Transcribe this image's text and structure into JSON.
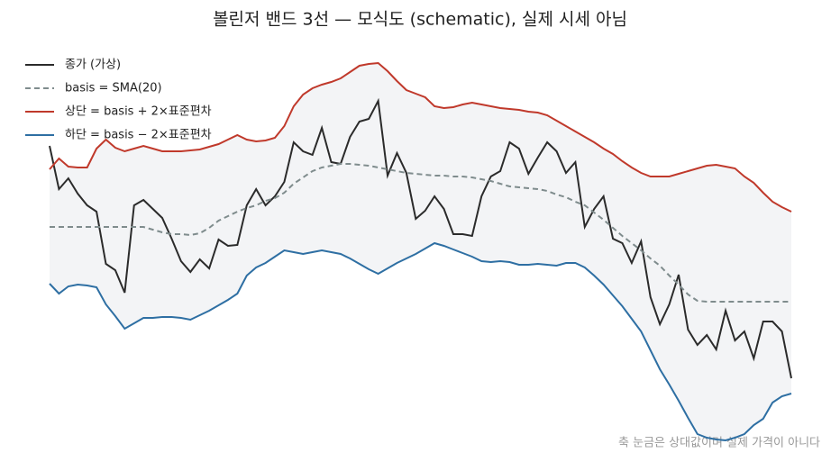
{
  "chart_data": {
    "type": "line",
    "title": "볼린저 밴드 3선 — 모식도 (schematic), 실제 시세 아님",
    "annotation": "축 눈금은 상대값이며 실제 가격이 아니다",
    "ylim": [
      0,
      450
    ],
    "legend": "upper left",
    "band_fill": "#f3f4f6",
    "series": [
      {
        "name": "종가 (가상)",
        "color": "#2b2b2b",
        "dash": "solid",
        "values": [
          338,
          290,
          302,
          285,
          272,
          265,
          207,
          200,
          175,
          272,
          278,
          268,
          258,
          235,
          210,
          198,
          212,
          202,
          234,
          227,
          228,
          272,
          290,
          272,
          282,
          298,
          342,
          332,
          328,
          358,
          320,
          318,
          348,
          365,
          368,
          388,
          305,
          330,
          308,
          257,
          266,
          282,
          268,
          240,
          240,
          238,
          282,
          304,
          310,
          342,
          335,
          307,
          325,
          342,
          332,
          308,
          320,
          248,
          268,
          282,
          235,
          230,
          208,
          232,
          170,
          140,
          162,
          195,
          134,
          117,
          128,
          112,
          155,
          122,
          132,
          102,
          143,
          143,
          132,
          80
        ]
      },
      {
        "name": "basis = SMA(20)",
        "color": "#7f8c8d",
        "dash": "dashed",
        "values": [
          248,
          248,
          248,
          248,
          248,
          248,
          248,
          248,
          248,
          248,
          248,
          245,
          242,
          240,
          240,
          239,
          241,
          247,
          255,
          260,
          265,
          269,
          272,
          277,
          280,
          286,
          296,
          303,
          310,
          314,
          316,
          318,
          318,
          317,
          316,
          314,
          312,
          310,
          308,
          307,
          306,
          305,
          305,
          304,
          304,
          303,
          301,
          299,
          296,
          293,
          292,
          291,
          290,
          288,
          284,
          281,
          276,
          272,
          264,
          256,
          247,
          238,
          230,
          222,
          213,
          205,
          194,
          184,
          173,
          166,
          165,
          165,
          165,
          165,
          165,
          165,
          165,
          165,
          165,
          165
        ]
      },
      {
        "name": "상단 = basis + 2×표준편차",
        "color": "#c0392b",
        "dash": "solid",
        "band": "upper",
        "values": [
          312,
          324,
          315,
          314,
          314,
          335,
          345,
          336,
          332,
          335,
          338,
          335,
          332,
          332,
          332,
          333,
          334,
          337,
          340,
          345,
          350,
          345,
          343,
          344,
          347,
          360,
          382,
          395,
          402,
          406,
          409,
          413,
          420,
          427,
          429,
          430,
          421,
          410,
          400,
          396,
          392,
          382,
          380,
          381,
          384,
          386,
          384,
          382,
          380,
          379,
          378,
          376,
          375,
          372,
          366,
          360,
          354,
          348,
          342,
          335,
          329,
          321,
          314,
          308,
          304,
          304,
          304,
          307,
          310,
          313,
          316,
          317,
          315,
          313,
          304,
          297,
          286,
          276,
          270,
          265
        ]
      },
      {
        "name": "하단 = basis − 2×표준편차",
        "color": "#2e6fa3",
        "dash": "solid",
        "band": "lower",
        "values": [
          185,
          174,
          182,
          184,
          183,
          181,
          162,
          149,
          135,
          141,
          147,
          147,
          148,
          148,
          147,
          145,
          150,
          155,
          161,
          167,
          174,
          194,
          203,
          208,
          215,
          222,
          220,
          218,
          220,
          222,
          220,
          218,
          213,
          207,
          201,
          196,
          202,
          208,
          213,
          218,
          224,
          230,
          227,
          223,
          219,
          215,
          210,
          209,
          210,
          209,
          206,
          206,
          207,
          206,
          205,
          208,
          208,
          203,
          194,
          184,
          172,
          160,
          146,
          132,
          111,
          90,
          73,
          55,
          36,
          18,
          14,
          12,
          11,
          14,
          18,
          28,
          35,
          53,
          60,
          63
        ]
      }
    ]
  }
}
